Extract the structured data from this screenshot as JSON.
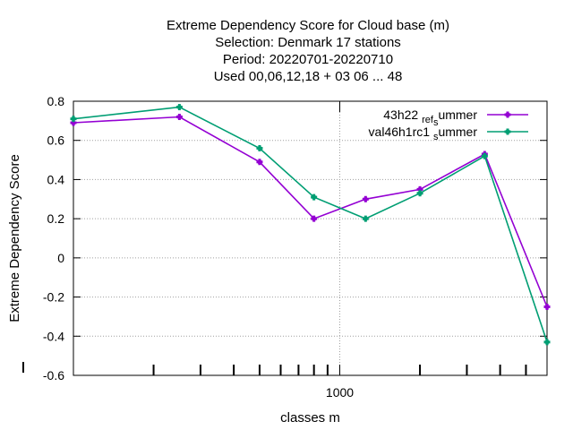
{
  "chart_data": {
    "type": "line",
    "title_lines": [
      "Extreme Dependency Score  for Cloud base (m)",
      "Selection: Denmark     17 stations",
      "Period: 20220701-20220710",
      "Used  00,06,12,18  + 03 06 ... 48"
    ],
    "xlabel": "classes m",
    "ylabel": "Extreme Dependency Score",
    "x_scale": "log",
    "xlim": [
      100,
      6000
    ],
    "ylim": [
      -0.6,
      0.8
    ],
    "y_ticks": [
      -0.6,
      -0.4,
      -0.2,
      0,
      0.2,
      0.4,
      0.6,
      0.8
    ],
    "y_tick_labels": [
      "-0.6",
      "-0.4",
      "-0.2",
      "0",
      "0.2",
      "0.4",
      "0.6",
      "0.8"
    ],
    "x_major_ticks": [
      1000
    ],
    "x_major_tick_labels": [
      "1000"
    ],
    "x_minor_ticks": [
      200,
      300,
      400,
      500,
      600,
      700,
      800,
      900,
      2000,
      3000,
      4000,
      5000
    ],
    "grid": true,
    "legend_position": "top-right",
    "series": [
      {
        "name": "43h22 ref summer",
        "legend": {
          "base": "43h22 ",
          "sub": "ref",
          "rest": "ummer",
          "sub2": "s"
        },
        "color": "#9400d3",
        "x": [
          100,
          250,
          500,
          800,
          1250,
          2000,
          3500,
          6000
        ],
        "y": [
          0.69,
          0.72,
          0.49,
          0.2,
          0.3,
          0.35,
          0.53,
          -0.25
        ]
      },
      {
        "name": "val46h1rc1 summer",
        "legend": {
          "base": "val46h1rc1 ",
          "sub": "s",
          "rest": "ummer"
        },
        "color": "#009e73",
        "x": [
          100,
          250,
          500,
          800,
          1250,
          2000,
          3500,
          6000
        ],
        "y": [
          0.71,
          0.77,
          0.56,
          0.31,
          0.2,
          0.33,
          0.52,
          -0.43
        ]
      }
    ]
  }
}
